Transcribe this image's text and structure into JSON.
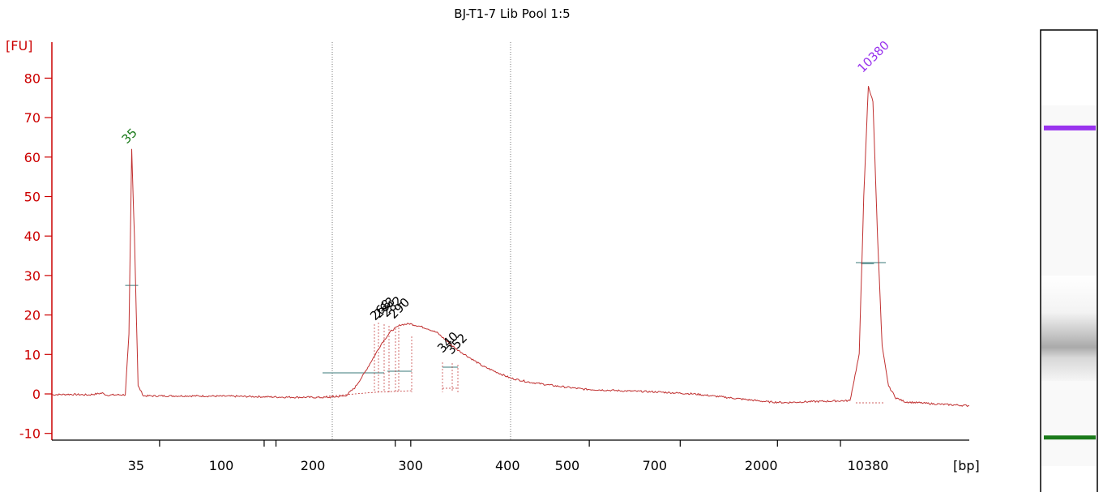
{
  "colors": {
    "axis": "#cc0000",
    "trace": "#c03030",
    "baseline": "#3a7a7a",
    "marker_lower": "#1a7a1a",
    "marker_upper": "#9933ee",
    "peak_label": "#000000"
  },
  "chart_data": {
    "type": "line",
    "title": "BJ-T1-7 Lib Pool 1:5",
    "ylabel": "[FU]",
    "xlabel": "[bp]",
    "ylim": [
      -10,
      80
    ],
    "yticks": [
      80,
      70,
      60,
      50,
      40,
      30,
      20,
      10,
      0,
      -10
    ],
    "xticks": [
      "35",
      "100",
      "200",
      "300",
      "400",
      "500",
      "700",
      "2000",
      "10380"
    ],
    "grid": false,
    "series": [
      {
        "points": [
          [
            0,
            -0.2
          ],
          [
            0.02,
            -0.1
          ],
          [
            0.04,
            -0.25
          ],
          [
            0.055,
            0.2
          ],
          [
            0.06,
            -0.3
          ],
          [
            0.08,
            -0.2
          ],
          [
            0.084,
            15
          ],
          [
            0.087,
            62
          ],
          [
            0.09,
            40
          ],
          [
            0.094,
            2
          ],
          [
            0.1,
            -0.5
          ],
          [
            0.15,
            -0.5
          ],
          [
            0.2,
            -0.6
          ],
          [
            0.25,
            -0.8
          ],
          [
            0.3,
            -0.9
          ],
          [
            0.32,
            -0.5
          ],
          [
            0.325,
            0.5
          ],
          [
            0.33,
            1.5
          ],
          [
            0.34,
            5
          ],
          [
            0.35,
            9
          ],
          [
            0.36,
            13
          ],
          [
            0.37,
            16
          ],
          [
            0.38,
            17.5
          ],
          [
            0.39,
            17.8
          ],
          [
            0.4,
            17.2
          ],
          [
            0.41,
            16.5
          ],
          [
            0.42,
            15.5
          ],
          [
            0.43,
            13.5
          ],
          [
            0.44,
            11.5
          ],
          [
            0.45,
            10
          ],
          [
            0.46,
            8.5
          ],
          [
            0.47,
            7
          ],
          [
            0.48,
            6
          ],
          [
            0.49,
            5
          ],
          [
            0.5,
            4
          ],
          [
            0.52,
            3
          ],
          [
            0.55,
            2
          ],
          [
            0.58,
            1.2
          ],
          [
            0.62,
            0.8
          ],
          [
            0.66,
            0.5
          ],
          [
            0.7,
            0
          ],
          [
            0.74,
            -1
          ],
          [
            0.78,
            -2
          ],
          [
            0.8,
            -2.2
          ],
          [
            0.82,
            -2
          ],
          [
            0.87,
            -1.7
          ],
          [
            0.88,
            10
          ],
          [
            0.885,
            50
          ],
          [
            0.89,
            78
          ],
          [
            0.895,
            74
          ],
          [
            0.9,
            40
          ],
          [
            0.905,
            12
          ],
          [
            0.912,
            2
          ],
          [
            0.92,
            -1
          ],
          [
            0.93,
            -2
          ],
          [
            0.96,
            -2.5
          ],
          [
            1.0,
            -3
          ]
        ]
      }
    ],
    "markers": [
      {
        "label": "35",
        "peak_fu": 62,
        "baseline_fu": 27.5,
        "x": 0.087,
        "color_key": "marker_lower"
      },
      {
        "label": "10380",
        "peak_fu": 80,
        "baseline_fu": 33,
        "x": 0.889,
        "color_key": "marker_upper"
      }
    ],
    "peak_labels": [
      "268",
      "263",
      "282",
      "290",
      "340",
      "352"
    ],
    "region_bounds_bp": [
      "≈220",
      "≈430"
    ],
    "region_bounds_axis": [
      0.311,
      0.5
    ]
  },
  "gel": {
    "upper_marker_position": 0.205,
    "lower_marker_position": 0.87,
    "smear_center": 0.62
  }
}
